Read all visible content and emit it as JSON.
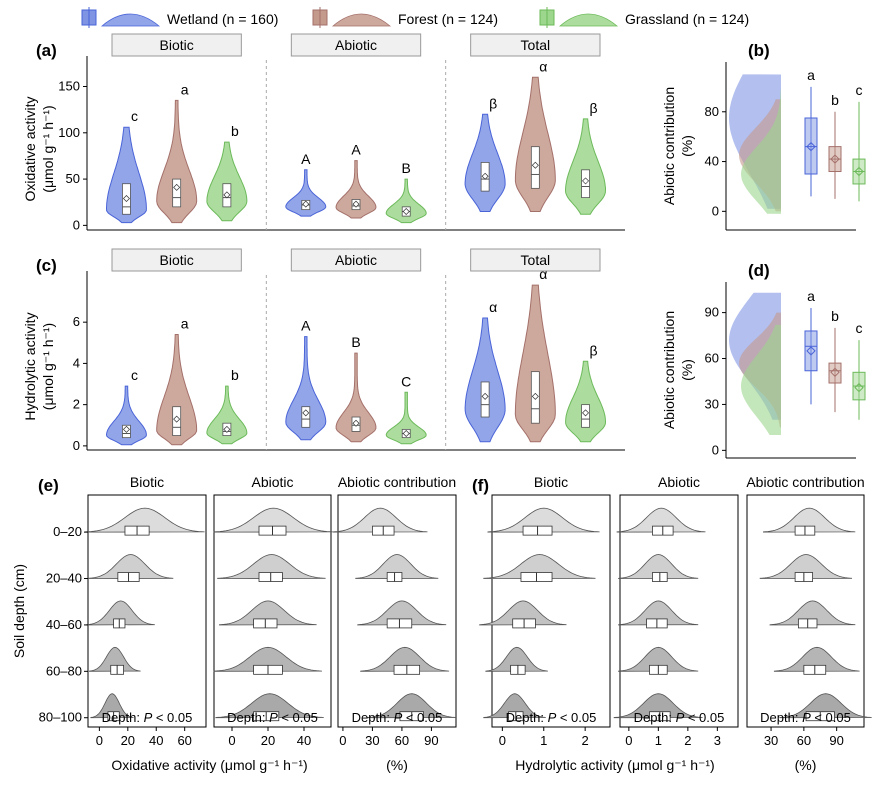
{
  "legend": [
    {
      "label": "Wetland (n = 160)",
      "color": "#7f95e4"
    },
    {
      "label": "Forest (n = 124)",
      "color": "#c49a8c"
    },
    {
      "label": "Grassland (n = 124)",
      "color": "#9dd68d"
    }
  ],
  "colors": {
    "wetland": "#7f95e4",
    "forest": "#c49a8c",
    "grassland": "#9dd68d",
    "wetland_line": "#4a64d8",
    "forest_line": "#a4706a",
    "grassland_line": "#6cba5a"
  },
  "chart_data": [
    {
      "panel": "(a)",
      "type": "violin",
      "ylabel": [
        "Oxidative activity",
        "(μmol g⁻¹ h⁻¹)"
      ],
      "yticks": [
        0,
        50,
        100,
        150
      ],
      "ylim": [
        -5,
        170
      ],
      "facets": [
        "Biotic",
        "Abiotic",
        "Total"
      ],
      "groups": [
        {
          "facet": "Biotic",
          "site": "Wetland",
          "min": 3,
          "max": 106,
          "q1": 12,
          "median": 20,
          "q3": 45,
          "mean": 29,
          "letter": "c"
        },
        {
          "facet": "Biotic",
          "site": "Forest",
          "min": 3,
          "max": 135,
          "q1": 20,
          "median": 30,
          "q3": 50,
          "mean": 41,
          "letter": "a"
        },
        {
          "facet": "Biotic",
          "site": "Grassland",
          "min": 5,
          "max": 90,
          "q1": 20,
          "median": 30,
          "q3": 45,
          "mean": 33,
          "letter": "b"
        },
        {
          "facet": "Abiotic",
          "site": "Wetland",
          "min": 10,
          "max": 60,
          "q1": 17,
          "median": 22,
          "q3": 27,
          "mean": 23,
          "letter": "A"
        },
        {
          "facet": "Abiotic",
          "site": "Forest",
          "min": 8,
          "max": 70,
          "q1": 17,
          "median": 21,
          "q3": 28,
          "mean": 23,
          "letter": "A"
        },
        {
          "facet": "Abiotic",
          "site": "Grassland",
          "min": 3,
          "max": 50,
          "q1": 10,
          "median": 15,
          "q3": 20,
          "mean": 15,
          "letter": "B"
        },
        {
          "facet": "Total",
          "site": "Wetland",
          "min": 15,
          "max": 120,
          "q1": 37,
          "median": 50,
          "q3": 68,
          "mean": 53,
          "letter": "β"
        },
        {
          "facet": "Total",
          "site": "Forest",
          "min": 15,
          "max": 160,
          "q1": 40,
          "median": 55,
          "q3": 85,
          "mean": 65,
          "letter": "α"
        },
        {
          "facet": "Total",
          "site": "Grassland",
          "min": 12,
          "max": 115,
          "q1": 30,
          "median": 42,
          "q3": 60,
          "mean": 48,
          "letter": "β"
        }
      ]
    },
    {
      "panel": "(b)",
      "type": "density+box",
      "ylabel": [
        "Abiotic contribution",
        "(%)"
      ],
      "yticks": [
        0,
        40,
        80
      ],
      "ylim": [
        -15,
        120
      ],
      "groups": [
        {
          "site": "Wetland",
          "min": 12,
          "max": 100,
          "q1": 30,
          "median": 52,
          "q3": 75,
          "mean": 52,
          "letter": "a",
          "peak": 75
        },
        {
          "site": "Forest",
          "min": 10,
          "max": 80,
          "q1": 32,
          "median": 42,
          "q3": 52,
          "mean": 42,
          "letter": "b",
          "peak": 45
        },
        {
          "site": "Grassland",
          "min": 8,
          "max": 88,
          "q1": 22,
          "median": 32,
          "q3": 42,
          "mean": 32,
          "letter": "c",
          "peak": 30
        }
      ]
    },
    {
      "panel": "(c)",
      "type": "violin",
      "ylabel": [
        "Hydrolytic activity",
        "(μmol g⁻¹ h⁻¹)"
      ],
      "yticks": [
        0,
        2,
        4,
        6
      ],
      "ylim": [
        -0.2,
        7.9
      ],
      "facets": [
        "Biotic",
        "Abiotic",
        "Total"
      ],
      "groups": [
        {
          "facet": "Biotic",
          "site": "Wetland",
          "min": 0.05,
          "max": 2.9,
          "q1": 0.4,
          "median": 0.6,
          "q3": 1.0,
          "mean": 0.8,
          "letter": "c"
        },
        {
          "facet": "Biotic",
          "site": "Forest",
          "min": 0.05,
          "max": 5.4,
          "q1": 0.5,
          "median": 0.9,
          "q3": 1.9,
          "mean": 1.3,
          "letter": "a"
        },
        {
          "facet": "Biotic",
          "site": "Grassland",
          "min": 0.1,
          "max": 2.9,
          "q1": 0.5,
          "median": 0.7,
          "q3": 1.1,
          "mean": 0.8,
          "letter": "b"
        },
        {
          "facet": "Abiotic",
          "site": "Wetland",
          "min": 0.3,
          "max": 5.3,
          "q1": 0.9,
          "median": 1.3,
          "q3": 1.9,
          "mean": 1.6,
          "letter": "A"
        },
        {
          "facet": "Abiotic",
          "site": "Forest",
          "min": 0.2,
          "max": 4.5,
          "q1": 0.7,
          "median": 1.0,
          "q3": 1.4,
          "mean": 1.1,
          "letter": "B"
        },
        {
          "facet": "Abiotic",
          "site": "Grassland",
          "min": 0.1,
          "max": 2.6,
          "q1": 0.4,
          "median": 0.6,
          "q3": 0.8,
          "mean": 0.6,
          "letter": "C"
        },
        {
          "facet": "Total",
          "site": "Wetland",
          "min": 0.2,
          "max": 6.2,
          "q1": 1.4,
          "median": 2.0,
          "q3": 3.1,
          "mean": 2.4,
          "letter": "α"
        },
        {
          "facet": "Total",
          "site": "Forest",
          "min": 0.2,
          "max": 7.8,
          "q1": 1.1,
          "median": 1.8,
          "q3": 3.6,
          "mean": 2.4,
          "letter": "α"
        },
        {
          "facet": "Total",
          "site": "Grassland",
          "min": 0.2,
          "max": 4.1,
          "q1": 0.9,
          "median": 1.3,
          "q3": 2.0,
          "mean": 1.6,
          "letter": "β"
        }
      ]
    },
    {
      "panel": "(d)",
      "type": "density+box",
      "ylabel": [
        "Abiotic contribution",
        "(%)"
      ],
      "yticks": [
        0,
        30,
        60,
        90
      ],
      "ylim": [
        -5,
        110
      ],
      "groups": [
        {
          "site": "Wetland",
          "min": 30,
          "max": 93,
          "q1": 52,
          "median": 68,
          "q3": 78,
          "mean": 65,
          "letter": "a",
          "peak": 72
        },
        {
          "site": "Forest",
          "min": 25,
          "max": 80,
          "q1": 44,
          "median": 52,
          "q3": 57,
          "mean": 51,
          "letter": "b",
          "peak": 57
        },
        {
          "site": "Grassland",
          "min": 20,
          "max": 72,
          "q1": 33,
          "median": 42,
          "q3": 51,
          "mean": 41,
          "letter": "c",
          "peak": 42
        }
      ]
    },
    {
      "panel": "(e)",
      "type": "ridgeline",
      "ylabel": "Soil depth (cm)",
      "depths": [
        "0–20",
        "20–40",
        "40–60",
        "60–80",
        "80–100"
      ],
      "xlabel_main": "Oxidative activity (μmol g⁻¹ h⁻¹)",
      "xlabel_contrib": "(%)",
      "annotation_prefix": "Depth: ",
      "annotation_p": "P",
      "annotation_rest": " < 0.05",
      "subpanels": [
        {
          "title": "Biotic",
          "xticks": [
            0,
            20,
            40,
            60
          ],
          "xlim": [
            -8,
            75
          ],
          "boxes": [
            [
              18,
              35
            ],
            [
              13,
              28
            ],
            [
              10,
              18
            ],
            [
              8,
              17
            ],
            [
              6,
              14
            ]
          ],
          "peaks": [
            32,
            22,
            15,
            11,
            9
          ],
          "spread": [
            14,
            10,
            8,
            6,
            5
          ]
        },
        {
          "title": "Abiotic",
          "xticks": [
            0,
            20,
            40
          ],
          "xlim": [
            -10,
            55
          ],
          "boxes": [
            [
              15,
              30
            ],
            [
              15,
              28
            ],
            [
              12,
              25
            ],
            [
              12,
              28
            ],
            [
              12,
              26
            ]
          ],
          "peaks": [
            23,
            22,
            20,
            20,
            21
          ],
          "spread": [
            11,
            10,
            9,
            10,
            10
          ]
        },
        {
          "title": "Abiotic contribution",
          "xticks": [
            0,
            30,
            60,
            90
          ],
          "xlim": [
            -5,
            115
          ],
          "boxes": [
            [
              30,
              52
            ],
            [
              45,
              60
            ],
            [
              45,
              70
            ],
            [
              52,
              78
            ],
            [
              58,
              82
            ]
          ],
          "peaks": [
            38,
            55,
            60,
            63,
            70
          ],
          "spread": [
            16,
            14,
            15,
            15,
            15
          ]
        }
      ]
    },
    {
      "panel": "(f)",
      "type": "ridgeline",
      "depths": [
        "0–20",
        "20–40",
        "40–60",
        "60–80",
        "80–100"
      ],
      "xlabel_main": "Hydrolytic activity (μmol g⁻¹ h⁻¹)",
      "xlabel_contrib": "(%)",
      "annotation_prefix": "Depth: ",
      "annotation_p": "P",
      "annotation_rest": " < 0.05",
      "subpanels": [
        {
          "title": "Biotic",
          "xticks": [
            0,
            1,
            2
          ],
          "xlim": [
            -0.25,
            2.6
          ],
          "boxes": [
            [
              0.5,
              1.2
            ],
            [
              0.45,
              1.2
            ],
            [
              0.25,
              0.8
            ],
            [
              0.2,
              0.55
            ],
            [
              0.15,
              0.5
            ]
          ],
          "peaks": [
            1.0,
            0.9,
            0.5,
            0.35,
            0.3
          ],
          "spread": [
            0.45,
            0.45,
            0.35,
            0.25,
            0.25
          ]
        },
        {
          "title": "Abiotic",
          "xticks": [
            0,
            1,
            2,
            3
          ],
          "xlim": [
            -0.3,
            3.7
          ],
          "boxes": [
            [
              0.8,
              1.5
            ],
            [
              0.8,
              1.3
            ],
            [
              0.6,
              1.3
            ],
            [
              0.7,
              1.3
            ],
            [
              0.7,
              1.4
            ]
          ],
          "peaks": [
            1.1,
            1.0,
            1.0,
            1.0,
            1.0
          ],
          "spread": [
            0.5,
            0.45,
            0.45,
            0.45,
            0.5
          ]
        },
        {
          "title": "Abiotic contribution",
          "xticks": [
            30,
            60,
            90
          ],
          "xlim": [
            8,
            115
          ],
          "boxes": [
            [
              52,
              70
            ],
            [
              52,
              68
            ],
            [
              55,
              72
            ],
            [
              60,
              80
            ],
            [
              62,
              88
            ]
          ],
          "peaks": [
            65,
            62,
            68,
            72,
            80
          ],
          "spread": [
            14,
            14,
            13,
            13,
            14
          ]
        }
      ]
    }
  ]
}
